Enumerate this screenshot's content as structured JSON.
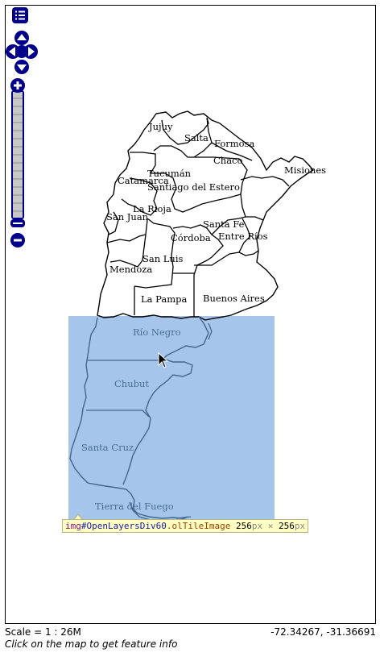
{
  "provinces": {
    "jujuy": "Jujuy",
    "salta": "Salta",
    "formosa": "Formosa",
    "chaco": "Chaco",
    "misiones": "Misiones",
    "tucuman": "Tucumán",
    "catamarca": "Catamarca",
    "santiago": "Santiago del Estero",
    "la_rioja": "La Rioja",
    "san_juan": "San Juan",
    "santa_fe": "Santa Fe",
    "cordoba": "Córdoba",
    "entre_rios": "Entre Ríos",
    "san_luis": "San Luis",
    "mendoza": "Mendoza",
    "la_pampa": "La Pampa",
    "buenos_aires": "Buenos Aires",
    "rio_negro": "Río Negro",
    "chubut": "Chubut",
    "santa_cruz": "Santa Cruz",
    "tierra_del_fuego": "Tierra del Fuego"
  },
  "tooltip": {
    "tag": "img",
    "id": "#OpenLayersDiv60",
    "cls": ".olTileImage",
    "w": "256",
    "w_unit": "px",
    "times": " × ",
    "h": "256",
    "h_unit": "px"
  },
  "status": {
    "scale": "Scale = 1 : 26M",
    "coords": "-72.34267, -31.36691",
    "info": "Click on the map to get feature info"
  },
  "colors": {
    "highlight": "#a5c6ea",
    "control": "#00008b"
  }
}
